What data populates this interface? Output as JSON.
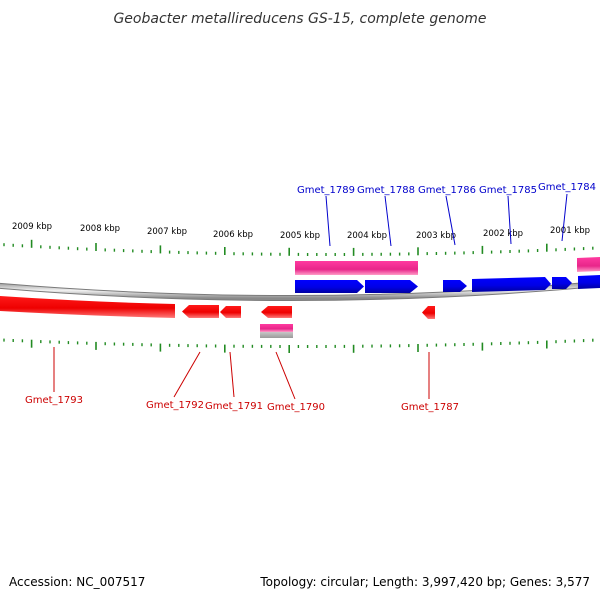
{
  "title": "Geobacter metallireducens GS-15, complete genome",
  "footer": {
    "accession": "Accession: NC_007517",
    "summary": "Topology: circular; Length: 3,997,420 bp; Genes: 3,577"
  },
  "scale_labels": [
    "2009 kbp",
    "2008 kbp",
    "2007 kbp",
    "2006 kbp",
    "2005 kbp",
    "2004 kbp",
    "2003 kbp",
    "2002 kbp",
    "2001 kbp"
  ],
  "genes_top": [
    "Gmet_1789",
    "Gmet_1788",
    "Gmet_1786",
    "Gmet_1785",
    "Gmet_1784"
  ],
  "genes_bottom": [
    "Gmet_1793",
    "Gmet_1792",
    "Gmet_1791",
    "Gmet_1790",
    "Gmet_1787"
  ],
  "colors": {
    "forward_gene": "#0000ee",
    "reverse_gene": "#ee0000",
    "rna_feature": "#ee2d8c",
    "pseudo_feature": "#b0b0b0",
    "tick": "#228b22",
    "backbone": "#888888"
  }
}
